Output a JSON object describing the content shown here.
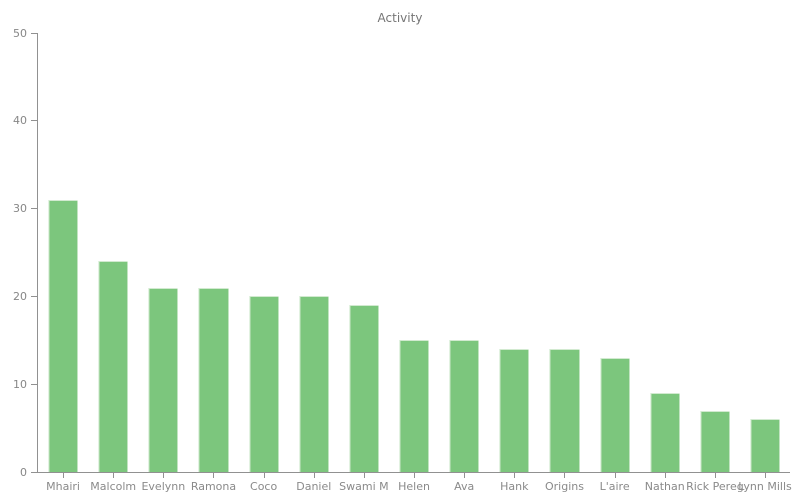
{
  "chart_data": {
    "type": "bar",
    "title": "Activity",
    "categories": [
      "Mhairi",
      "Malcolm",
      "Evelynn",
      "Ramona",
      "Coco",
      "Daniel",
      "Swami M",
      "Helen",
      "Ava",
      "Hank",
      "Origins",
      "L'aire",
      "Nathan",
      "Rick Pereg",
      "Lynn Mills"
    ],
    "values": [
      31,
      24,
      21,
      21,
      20,
      20,
      19,
      15,
      15,
      14,
      14,
      13,
      9,
      7,
      6
    ],
    "xlabel": "",
    "ylabel": "",
    "ylim": [
      0,
      50
    ],
    "yticks": [
      0,
      10,
      20,
      30,
      40,
      50
    ],
    "grid": false,
    "legend": false,
    "colors": {
      "bar_fill": "#7cc67d",
      "bar_highlight": "#d2ead0",
      "axis_line": "#919191",
      "tick_label": "#878787",
      "category_label": "#8a8a8a",
      "title": "#757575"
    }
  }
}
